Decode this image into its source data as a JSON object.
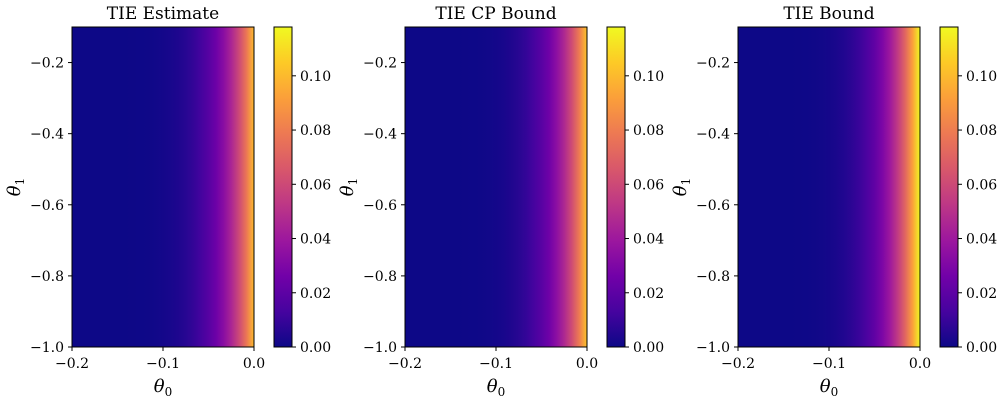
{
  "colormap": {
    "name": "plasma",
    "stops": [
      "#0d0887",
      "#46039f",
      "#7201a8",
      "#9c179e",
      "#bd3786",
      "#d8576b",
      "#ed7953",
      "#fb9f3a",
      "#fdca26",
      "#f0f921"
    ]
  },
  "chart_data": [
    {
      "type": "heatmap",
      "title": "TIE Estimate",
      "xlabel": "θ",
      "xlabel_sub": "0",
      "ylabel": "θ",
      "ylabel_sub": "1",
      "xlim": [
        -0.2,
        0.0
      ],
      "ylim": [
        -1.0,
        -0.1
      ],
      "xticks": [
        -0.2,
        -0.1,
        0.0
      ],
      "xtick_labels": [
        "−0.2",
        "−0.1",
        "0.0"
      ],
      "yticks": [
        -1.0,
        -0.8,
        -0.6,
        -0.4,
        -0.2
      ],
      "ytick_labels": [
        "−1.0",
        "−0.8",
        "−0.6",
        "−0.4",
        "−0.2"
      ],
      "colorbar": {
        "range": [
          0.0,
          0.118
        ],
        "ticks": [
          0.0,
          0.02,
          0.04,
          0.06,
          0.08,
          0.1
        ],
        "tick_labels": [
          "0.00",
          "0.02",
          "0.04",
          "0.06",
          "0.08",
          "0.10"
        ]
      },
      "value_range_depicted": [
        0.0,
        0.1
      ]
    },
    {
      "type": "heatmap",
      "title": "TIE CP Bound",
      "xlabel": "θ",
      "xlabel_sub": "0",
      "ylabel": "θ",
      "ylabel_sub": "1",
      "xlim": [
        -0.2,
        0.0
      ],
      "ylim": [
        -1.0,
        -0.1
      ],
      "xticks": [
        -0.2,
        -0.1,
        0.0
      ],
      "xtick_labels": [
        "−0.2",
        "−0.1",
        "0.0"
      ],
      "yticks": [
        -1.0,
        -0.8,
        -0.6,
        -0.4,
        -0.2
      ],
      "ytick_labels": [
        "−1.0",
        "−0.8",
        "−0.6",
        "−0.4",
        "−0.2"
      ],
      "colorbar": {
        "range": [
          0.0,
          0.118
        ],
        "ticks": [
          0.0,
          0.02,
          0.04,
          0.06,
          0.08,
          0.1
        ],
        "tick_labels": [
          "0.00",
          "0.02",
          "0.04",
          "0.06",
          "0.08",
          "0.10"
        ]
      },
      "value_range_depicted": [
        0.0,
        0.103
      ]
    },
    {
      "type": "heatmap",
      "title": "TIE Bound",
      "xlabel": "θ",
      "xlabel_sub": "0",
      "ylabel": "θ",
      "ylabel_sub": "1",
      "xlim": [
        -0.2,
        0.0
      ],
      "ylim": [
        -1.0,
        -0.1
      ],
      "xticks": [
        -0.2,
        -0.1,
        0.0
      ],
      "xtick_labels": [
        "−0.2",
        "−0.1",
        "0.0"
      ],
      "yticks": [
        -1.0,
        -0.8,
        -0.6,
        -0.4,
        -0.2
      ],
      "ytick_labels": [
        "−1.0",
        "−0.8",
        "−0.6",
        "−0.4",
        "−0.2"
      ],
      "colorbar": {
        "range": [
          0.0,
          0.118
        ],
        "ticks": [
          0.0,
          0.02,
          0.04,
          0.06,
          0.08,
          0.1
        ],
        "tick_labels": [
          "0.00",
          "0.02",
          "0.04",
          "0.06",
          "0.08",
          "0.10"
        ]
      },
      "value_range_depicted": [
        0.0,
        0.118
      ]
    }
  ]
}
